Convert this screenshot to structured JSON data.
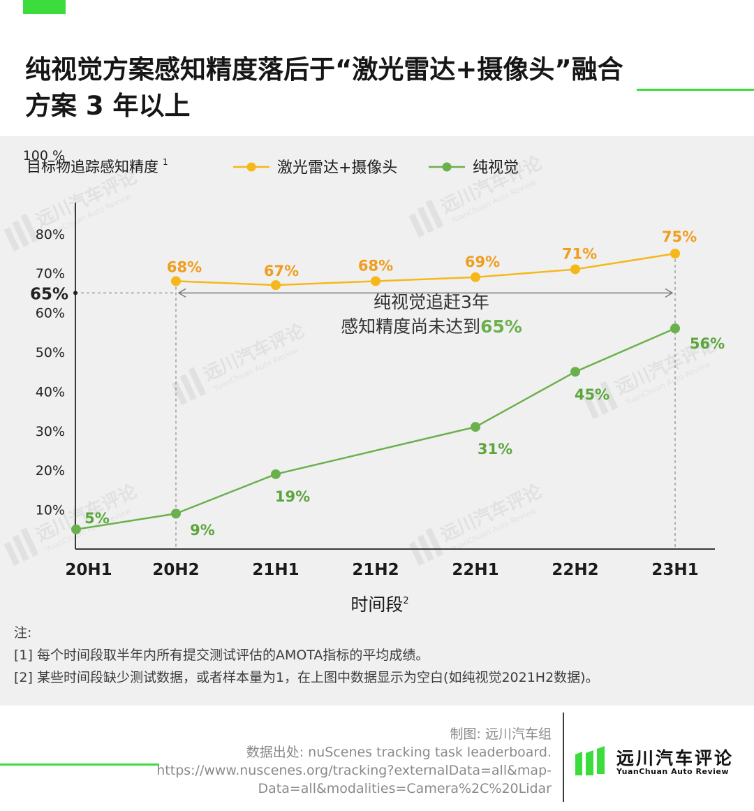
{
  "title": "纯视觉方案感知精度落后于“激光雷达+摄像头”融合方案 3 年以上",
  "chart_data": {
    "type": "line",
    "ylabel": "目标物追踪感知精度",
    "ylabel_sup": "1",
    "xlabel": "时间段",
    "xlabel_sup": "2",
    "categories": [
      "20H1",
      "20H2",
      "21H1",
      "21H2",
      "22H1",
      "22H2",
      "23H1"
    ],
    "y_ticks": [
      "100 %",
      "80%",
      "70%",
      "60%",
      "50%",
      "40%",
      "30%",
      "20%",
      "10%"
    ],
    "y_tick_values": [
      100,
      80,
      70,
      60,
      50,
      40,
      30,
      20,
      10
    ],
    "ylim": [
      0,
      100
    ],
    "legend_position": "top",
    "series": [
      {
        "name": "激光雷达+摄像头",
        "color": "#f5b818",
        "label_color": "#f09d1e",
        "points": [
          {
            "x": "20H2",
            "y": 68,
            "label": "68%"
          },
          {
            "x": "21H1",
            "y": 67,
            "label": "67%"
          },
          {
            "x": "21H2",
            "y": 68,
            "label": "68%"
          },
          {
            "x": "22H1",
            "y": 69,
            "label": "69%"
          },
          {
            "x": "22H2",
            "y": 71,
            "label": "71%"
          },
          {
            "x": "23H1",
            "y": 75,
            "label": "75%"
          }
        ]
      },
      {
        "name": "纯视觉",
        "color": "#6ab04c",
        "label_color": "#5aa63c",
        "points": [
          {
            "x": "20H1",
            "y": 5,
            "label": "5%"
          },
          {
            "x": "20H2",
            "y": 9,
            "label": "9%"
          },
          {
            "x": "21H1",
            "y": 19,
            "label": "19%"
          },
          {
            "x": "22H1",
            "y": 31,
            "label": "31%"
          },
          {
            "x": "22H2",
            "y": 45,
            "label": "45%"
          },
          {
            "x": "23H1",
            "y": 56,
            "label": "56%"
          }
        ]
      }
    ],
    "reference": {
      "value": 65,
      "label": "65%"
    },
    "annotation": {
      "line1": "纯视觉追赶3年",
      "line2_prefix": "感知精度尚未达到",
      "line2_highlight": "65%"
    },
    "grid": false
  },
  "watermark": {
    "cn": "远川汽车评论",
    "en": "YuanChuan  Auto  Review"
  },
  "notes": {
    "heading": "注:",
    "items": [
      "[1] 每个时间段取半年内所有提交测试评估的AMOTA指标的平均成绩。",
      "[2] 某些时间段缺少测试数据，或者样本量为1，在上图中数据显示为空白(如纯视觉2021H2数据)。"
    ]
  },
  "footer": {
    "credit": "制图: 远川汽车组",
    "source_label": "数据出处: nuScenes tracking task leaderboard.",
    "url_line1": "https://www.nuscenes.org/tracking?externalData=all&map-",
    "url_line2": "Data=all&modalities=Camera%2C%20Lidar",
    "logo_cn": "远川汽车评论",
    "logo_en": "YuanChuan   Auto   Review"
  },
  "colors": {
    "accent": "#3cdc3c",
    "panel": "#f0f0f0",
    "lidar": "#f5b818",
    "camera": "#6ab04c"
  }
}
